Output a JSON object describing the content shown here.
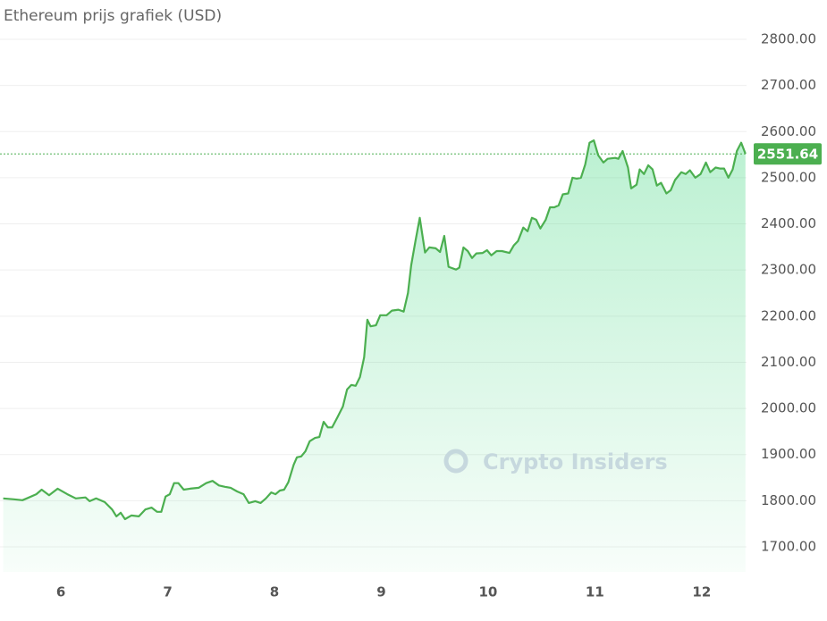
{
  "chart_data": {
    "type": "area",
    "title": "Ethereum prijs grafiek (USD)",
    "watermark": "Crypto Insiders",
    "color": "#4caf50",
    "last_value": 2551.64,
    "x": [
      5.46,
      5.56,
      5.64,
      5.68,
      5.77,
      5.82,
      5.89,
      5.97,
      6.06,
      6.14,
      6.23,
      6.27,
      6.33,
      6.41,
      6.48,
      6.52,
      6.56,
      6.6,
      6.66,
      6.73,
      6.79,
      6.85,
      6.9,
      6.94,
      6.98,
      7.02,
      7.06,
      7.1,
      7.15,
      7.21,
      7.29,
      7.36,
      7.42,
      7.48,
      7.54,
      7.59,
      7.65,
      7.71,
      7.76,
      7.82,
      7.87,
      7.92,
      7.97,
      8.01,
      8.05,
      8.09,
      8.13,
      8.18,
      8.21,
      8.25,
      8.29,
      8.33,
      8.38,
      8.42,
      8.46,
      8.5,
      8.54,
      8.59,
      8.64,
      8.68,
      8.72,
      8.76,
      8.8,
      8.84,
      8.87,
      8.9,
      8.95,
      8.99,
      9.05,
      9.1,
      9.16,
      9.21,
      9.25,
      9.28,
      9.32,
      9.36,
      9.41,
      9.45,
      9.51,
      9.55,
      9.59,
      9.63,
      9.7,
      9.73,
      9.77,
      9.81,
      9.85,
      9.89,
      9.95,
      9.99,
      10.03,
      10.08,
      10.13,
      10.2,
      10.24,
      10.28,
      10.33,
      10.37,
      10.41,
      10.45,
      10.49,
      10.54,
      10.58,
      10.62,
      10.66,
      10.7,
      10.75,
      10.79,
      10.83,
      10.87,
      10.91,
      10.95,
      10.99,
      11.03,
      11.08,
      11.12,
      11.19,
      11.22,
      11.26,
      11.31,
      11.34,
      11.39,
      11.42,
      11.46,
      11.5,
      11.54,
      11.58,
      11.62,
      11.67,
      11.71,
      11.75,
      11.81,
      11.85,
      11.89,
      11.94,
      11.99,
      12.04,
      12.08,
      12.13,
      12.17,
      12.21,
      12.25,
      12.29,
      12.33,
      12.37,
      12.41
    ],
    "values": [
      1805,
      1803,
      1801,
      1805,
      1814,
      1824,
      1812,
      1826,
      1814,
      1805,
      1807,
      1799,
      1805,
      1797,
      1781,
      1766,
      1774,
      1760,
      1768,
      1766,
      1781,
      1785,
      1776,
      1776,
      1809,
      1814,
      1838,
      1838,
      1824,
      1826,
      1828,
      1838,
      1843,
      1833,
      1830,
      1828,
      1820,
      1814,
      1795,
      1799,
      1795,
      1805,
      1818,
      1814,
      1822,
      1824,
      1840,
      1878,
      1894,
      1896,
      1907,
      1929,
      1936,
      1938,
      1971,
      1959,
      1959,
      1981,
      2004,
      2041,
      2051,
      2049,
      2068,
      2111,
      2192,
      2178,
      2180,
      2202,
      2202,
      2212,
      2214,
      2210,
      2250,
      2310,
      2363,
      2413,
      2338,
      2349,
      2347,
      2339,
      2374,
      2307,
      2301,
      2305,
      2349,
      2341,
      2326,
      2336,
      2337,
      2343,
      2332,
      2341,
      2341,
      2337,
      2353,
      2363,
      2392,
      2384,
      2413,
      2409,
      2390,
      2409,
      2436,
      2436,
      2440,
      2464,
      2466,
      2500,
      2498,
      2500,
      2529,
      2576,
      2581,
      2549,
      2533,
      2541,
      2543,
      2541,
      2558,
      2522,
      2477,
      2485,
      2518,
      2508,
      2527,
      2518,
      2483,
      2489,
      2466,
      2473,
      2495,
      2512,
      2508,
      2516,
      2500,
      2508,
      2533,
      2512,
      2522,
      2520,
      2520,
      2500,
      2518,
      2558,
      2576,
      2552
    ],
    "xlim": [
      5.43,
      12.42
    ],
    "xticks": [
      6,
      7,
      8,
      9,
      10,
      11,
      12
    ],
    "ylim": [
      1700,
      2800
    ],
    "yticks": [
      {
        "value": 1700,
        "label": "1700.00"
      },
      {
        "value": 1800,
        "label": "1800.00"
      },
      {
        "value": 1900,
        "label": "1900.00"
      },
      {
        "value": 2000,
        "label": "2000.00"
      },
      {
        "value": 2100,
        "label": "2100.00"
      },
      {
        "value": 2200,
        "label": "2200.00"
      },
      {
        "value": 2300,
        "label": "2300.00"
      },
      {
        "value": 2400,
        "label": "2400.00"
      },
      {
        "value": 2500,
        "label": "2500.00"
      },
      {
        "value": 2600,
        "label": "2600.00"
      },
      {
        "value": 2700,
        "label": "2700.00"
      },
      {
        "value": 2800,
        "label": "2800.00"
      }
    ],
    "grid": true
  }
}
